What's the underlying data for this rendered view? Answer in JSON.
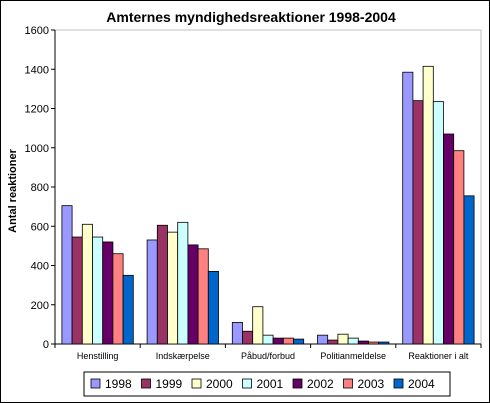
{
  "chart_data": {
    "type": "bar",
    "title": "Amternes myndighedsreaktioner 1998-2004",
    "ylabel": "Antal reaktioner",
    "xlabel": "",
    "ylim": [
      0,
      1600
    ],
    "yticks": [
      0,
      200,
      400,
      600,
      800,
      1000,
      1200,
      1400,
      1600
    ],
    "grid": false,
    "legend_position": "bottom",
    "categories": [
      "Henstilling",
      "Indskærpelse",
      "Påbud/forbud",
      "Politianmeldelse",
      "Reaktioner i alt"
    ],
    "series": [
      {
        "name": "1998",
        "color": "#9999FF",
        "values": [
          705,
          530,
          110,
          45,
          1385
        ]
      },
      {
        "name": "1999",
        "color": "#993366",
        "values": [
          545,
          605,
          65,
          20,
          1240
        ]
      },
      {
        "name": "2000",
        "color": "#FFFFCC",
        "values": [
          610,
          570,
          190,
          50,
          1415
        ]
      },
      {
        "name": "2001",
        "color": "#CCFFFF",
        "values": [
          545,
          620,
          45,
          30,
          1235
        ]
      },
      {
        "name": "2002",
        "color": "#660066",
        "values": [
          520,
          505,
          30,
          15,
          1070
        ]
      },
      {
        "name": "2003",
        "color": "#FF8080",
        "values": [
          460,
          485,
          30,
          10,
          985
        ]
      },
      {
        "name": "2004",
        "color": "#0066CC",
        "values": [
          350,
          370,
          25,
          10,
          755
        ]
      }
    ]
  }
}
